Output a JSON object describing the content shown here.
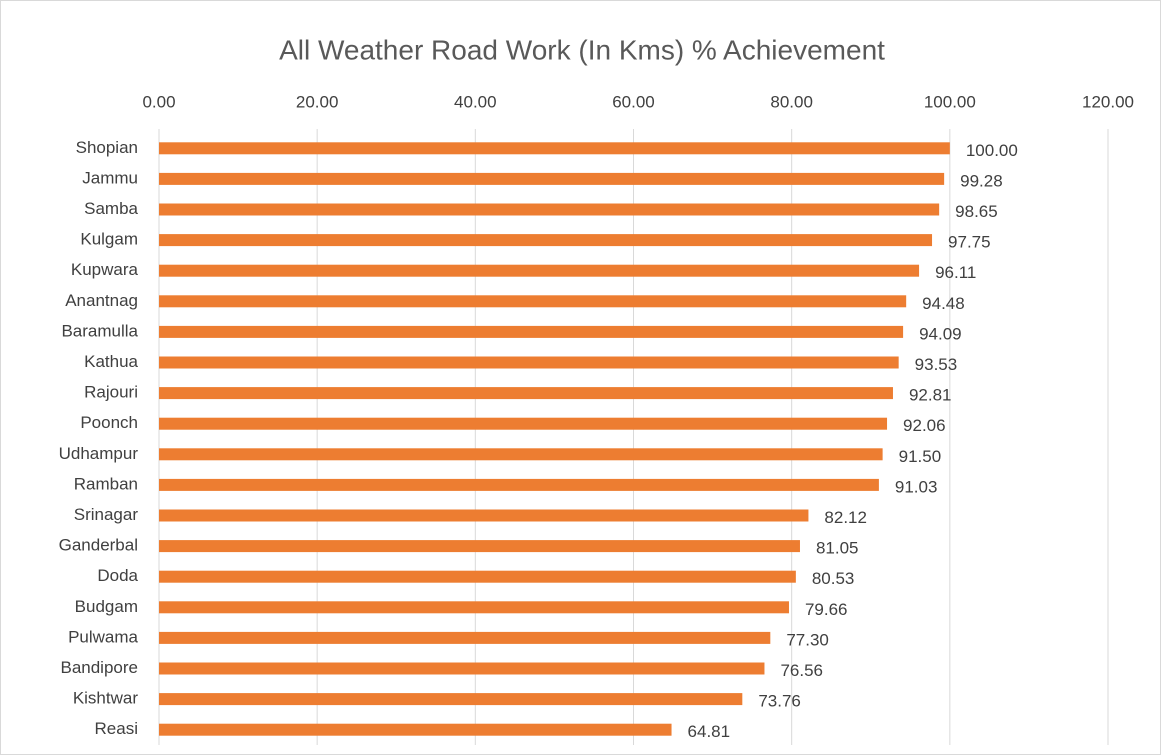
{
  "chart_data": {
    "type": "hbar",
    "title": "All Weather Road Work (In Kms) % Achievement",
    "categories": [
      "Shopian",
      "Jammu",
      "Samba",
      "Kulgam",
      "Kupwara",
      "Anantnag",
      "Baramulla",
      "Kathua",
      "Rajouri",
      "Poonch",
      "Udhampur",
      "Ramban",
      "Srinagar",
      "Ganderbal",
      "Doda",
      "Budgam",
      "Pulwama",
      "Bandipore",
      "Kishtwar",
      "Reasi"
    ],
    "values": [
      100.0,
      99.28,
      98.65,
      97.75,
      96.11,
      94.48,
      94.09,
      93.53,
      92.81,
      92.06,
      91.5,
      91.03,
      82.12,
      81.05,
      80.53,
      79.66,
      77.3,
      76.56,
      73.76,
      64.81
    ],
    "value_labels": [
      "100.00",
      "99.28",
      "98.65",
      "97.75",
      "96.11",
      "94.48",
      "94.09",
      "93.53",
      "92.81",
      "92.06",
      "91.50",
      "91.03",
      "82.12",
      "81.05",
      "80.53",
      "79.66",
      "77.30",
      "76.56",
      "73.76",
      "64.81"
    ],
    "color": "#ed7d31",
    "xlim": [
      0,
      120
    ],
    "xticks": [
      {
        "value": 0,
        "label": "0.00"
      },
      {
        "value": 20,
        "label": "20.00"
      },
      {
        "value": 40,
        "label": "40.00"
      },
      {
        "value": 60,
        "label": "60.00"
      },
      {
        "value": 80,
        "label": "80.00"
      },
      {
        "value": 100,
        "label": "100.00"
      },
      {
        "value": 120,
        "label": "120.00"
      }
    ],
    "grid": true
  }
}
